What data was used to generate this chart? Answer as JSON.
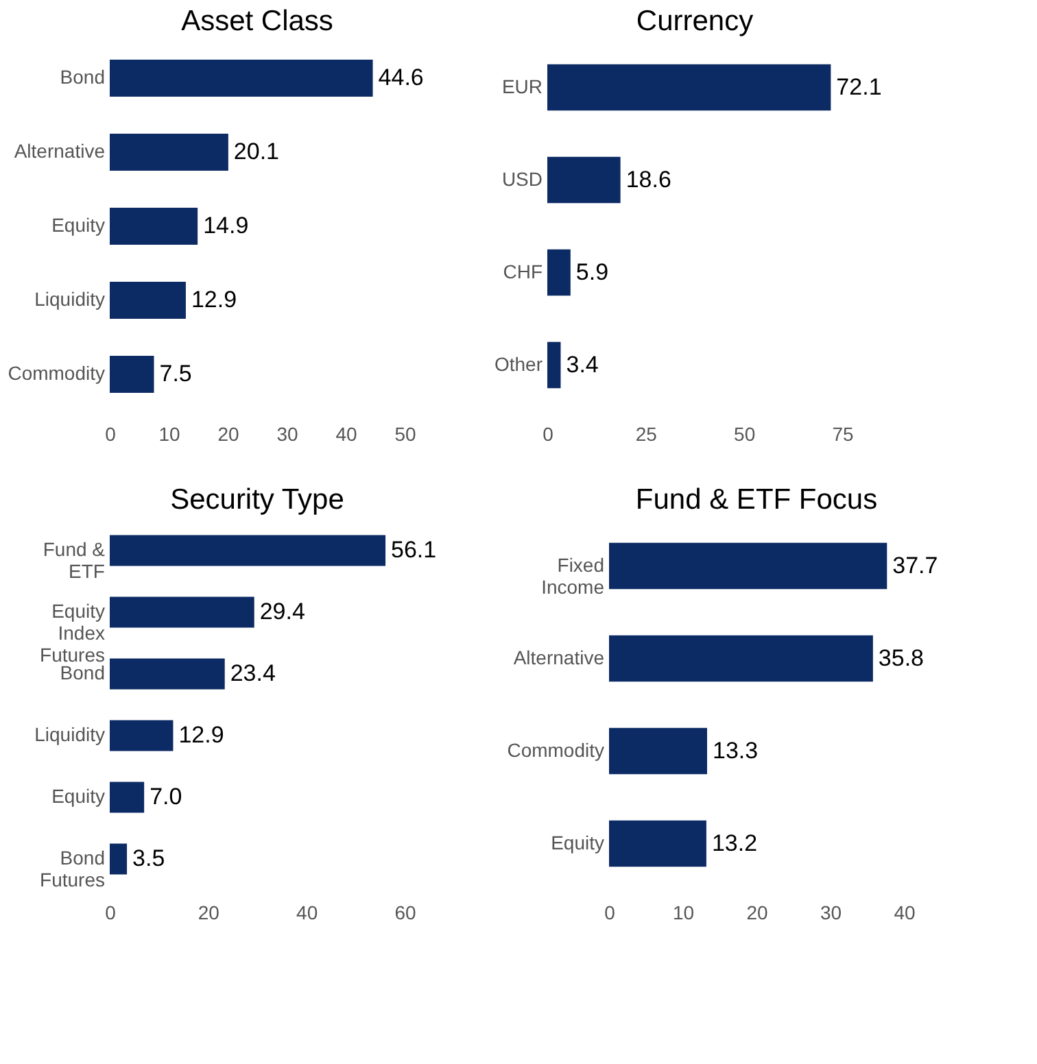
{
  "chart_data": [
    {
      "type": "bar",
      "orientation": "horizontal",
      "title": "Asset Class",
      "categories": [
        "Bond",
        "Alternative",
        "Equity",
        "Liquidity",
        "Commodity"
      ],
      "values": [
        44.6,
        20.1,
        14.9,
        12.9,
        7.5
      ],
      "value_labels": [
        "44.6",
        "20.1",
        "14.9",
        "12.9",
        "7.5"
      ],
      "color": "#0c2a63",
      "xlim": [
        0,
        50
      ],
      "xticks": [
        0,
        10,
        20,
        30,
        40,
        50
      ],
      "grid": false
    },
    {
      "type": "bar",
      "orientation": "horizontal",
      "title": "Currency",
      "categories": [
        "EUR",
        "USD",
        "CHF",
        "Other"
      ],
      "values": [
        72.1,
        18.6,
        5.9,
        3.4
      ],
      "value_labels": [
        "72.1",
        "18.6",
        "5.9",
        "3.4"
      ],
      "color": "#0c2a63",
      "xlim": [
        0,
        75
      ],
      "xticks": [
        0,
        25,
        50,
        75
      ],
      "grid": false
    },
    {
      "type": "bar",
      "orientation": "horizontal",
      "title": "Security Type",
      "categories": [
        "Fund & ETF",
        "Equity Index Futures",
        "Bond",
        "Liquidity",
        "Equity",
        "Bond Futures"
      ],
      "values": [
        56.1,
        29.4,
        23.4,
        12.9,
        7.0,
        3.5
      ],
      "value_labels": [
        "56.1",
        "29.4",
        "23.4",
        "12.9",
        "7.0",
        "3.5"
      ],
      "color": "#0c2a63",
      "xlim": [
        0,
        60
      ],
      "xticks": [
        0,
        20,
        40,
        60
      ],
      "grid": false
    },
    {
      "type": "bar",
      "orientation": "horizontal",
      "title": "Fund & ETF Focus",
      "categories": [
        "Fixed Income",
        "Alternative",
        "Commodity",
        "Equity"
      ],
      "values": [
        37.7,
        35.8,
        13.3,
        13.2
      ],
      "value_labels": [
        "37.7",
        "35.8",
        "13.3",
        "13.2"
      ],
      "color": "#0c2a63",
      "xlim": [
        0,
        40
      ],
      "xticks": [
        0,
        10,
        20,
        30,
        40
      ],
      "grid": false
    }
  ]
}
